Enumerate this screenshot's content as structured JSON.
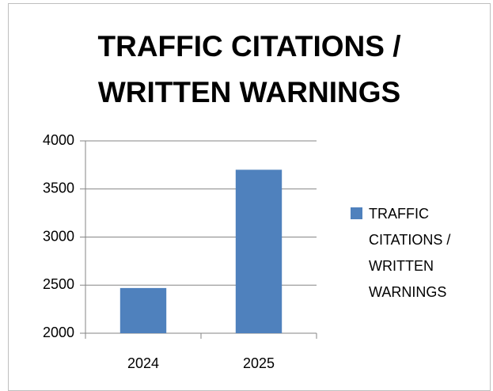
{
  "chart_data": {
    "type": "bar",
    "title": "TRAFFIC CITATIONS / WRITTEN WARNINGS",
    "categories": [
      "2024",
      "2025"
    ],
    "series": [
      {
        "name": "TRAFFIC CITATIONS / WRITTEN WARNINGS",
        "color": "#4f81bd",
        "values": [
          2470,
          3700
        ]
      }
    ],
    "ylim": [
      2000,
      4000
    ],
    "yticks": [
      2000,
      2500,
      3000,
      3500,
      4000
    ],
    "grid": true,
    "legend": "right"
  }
}
